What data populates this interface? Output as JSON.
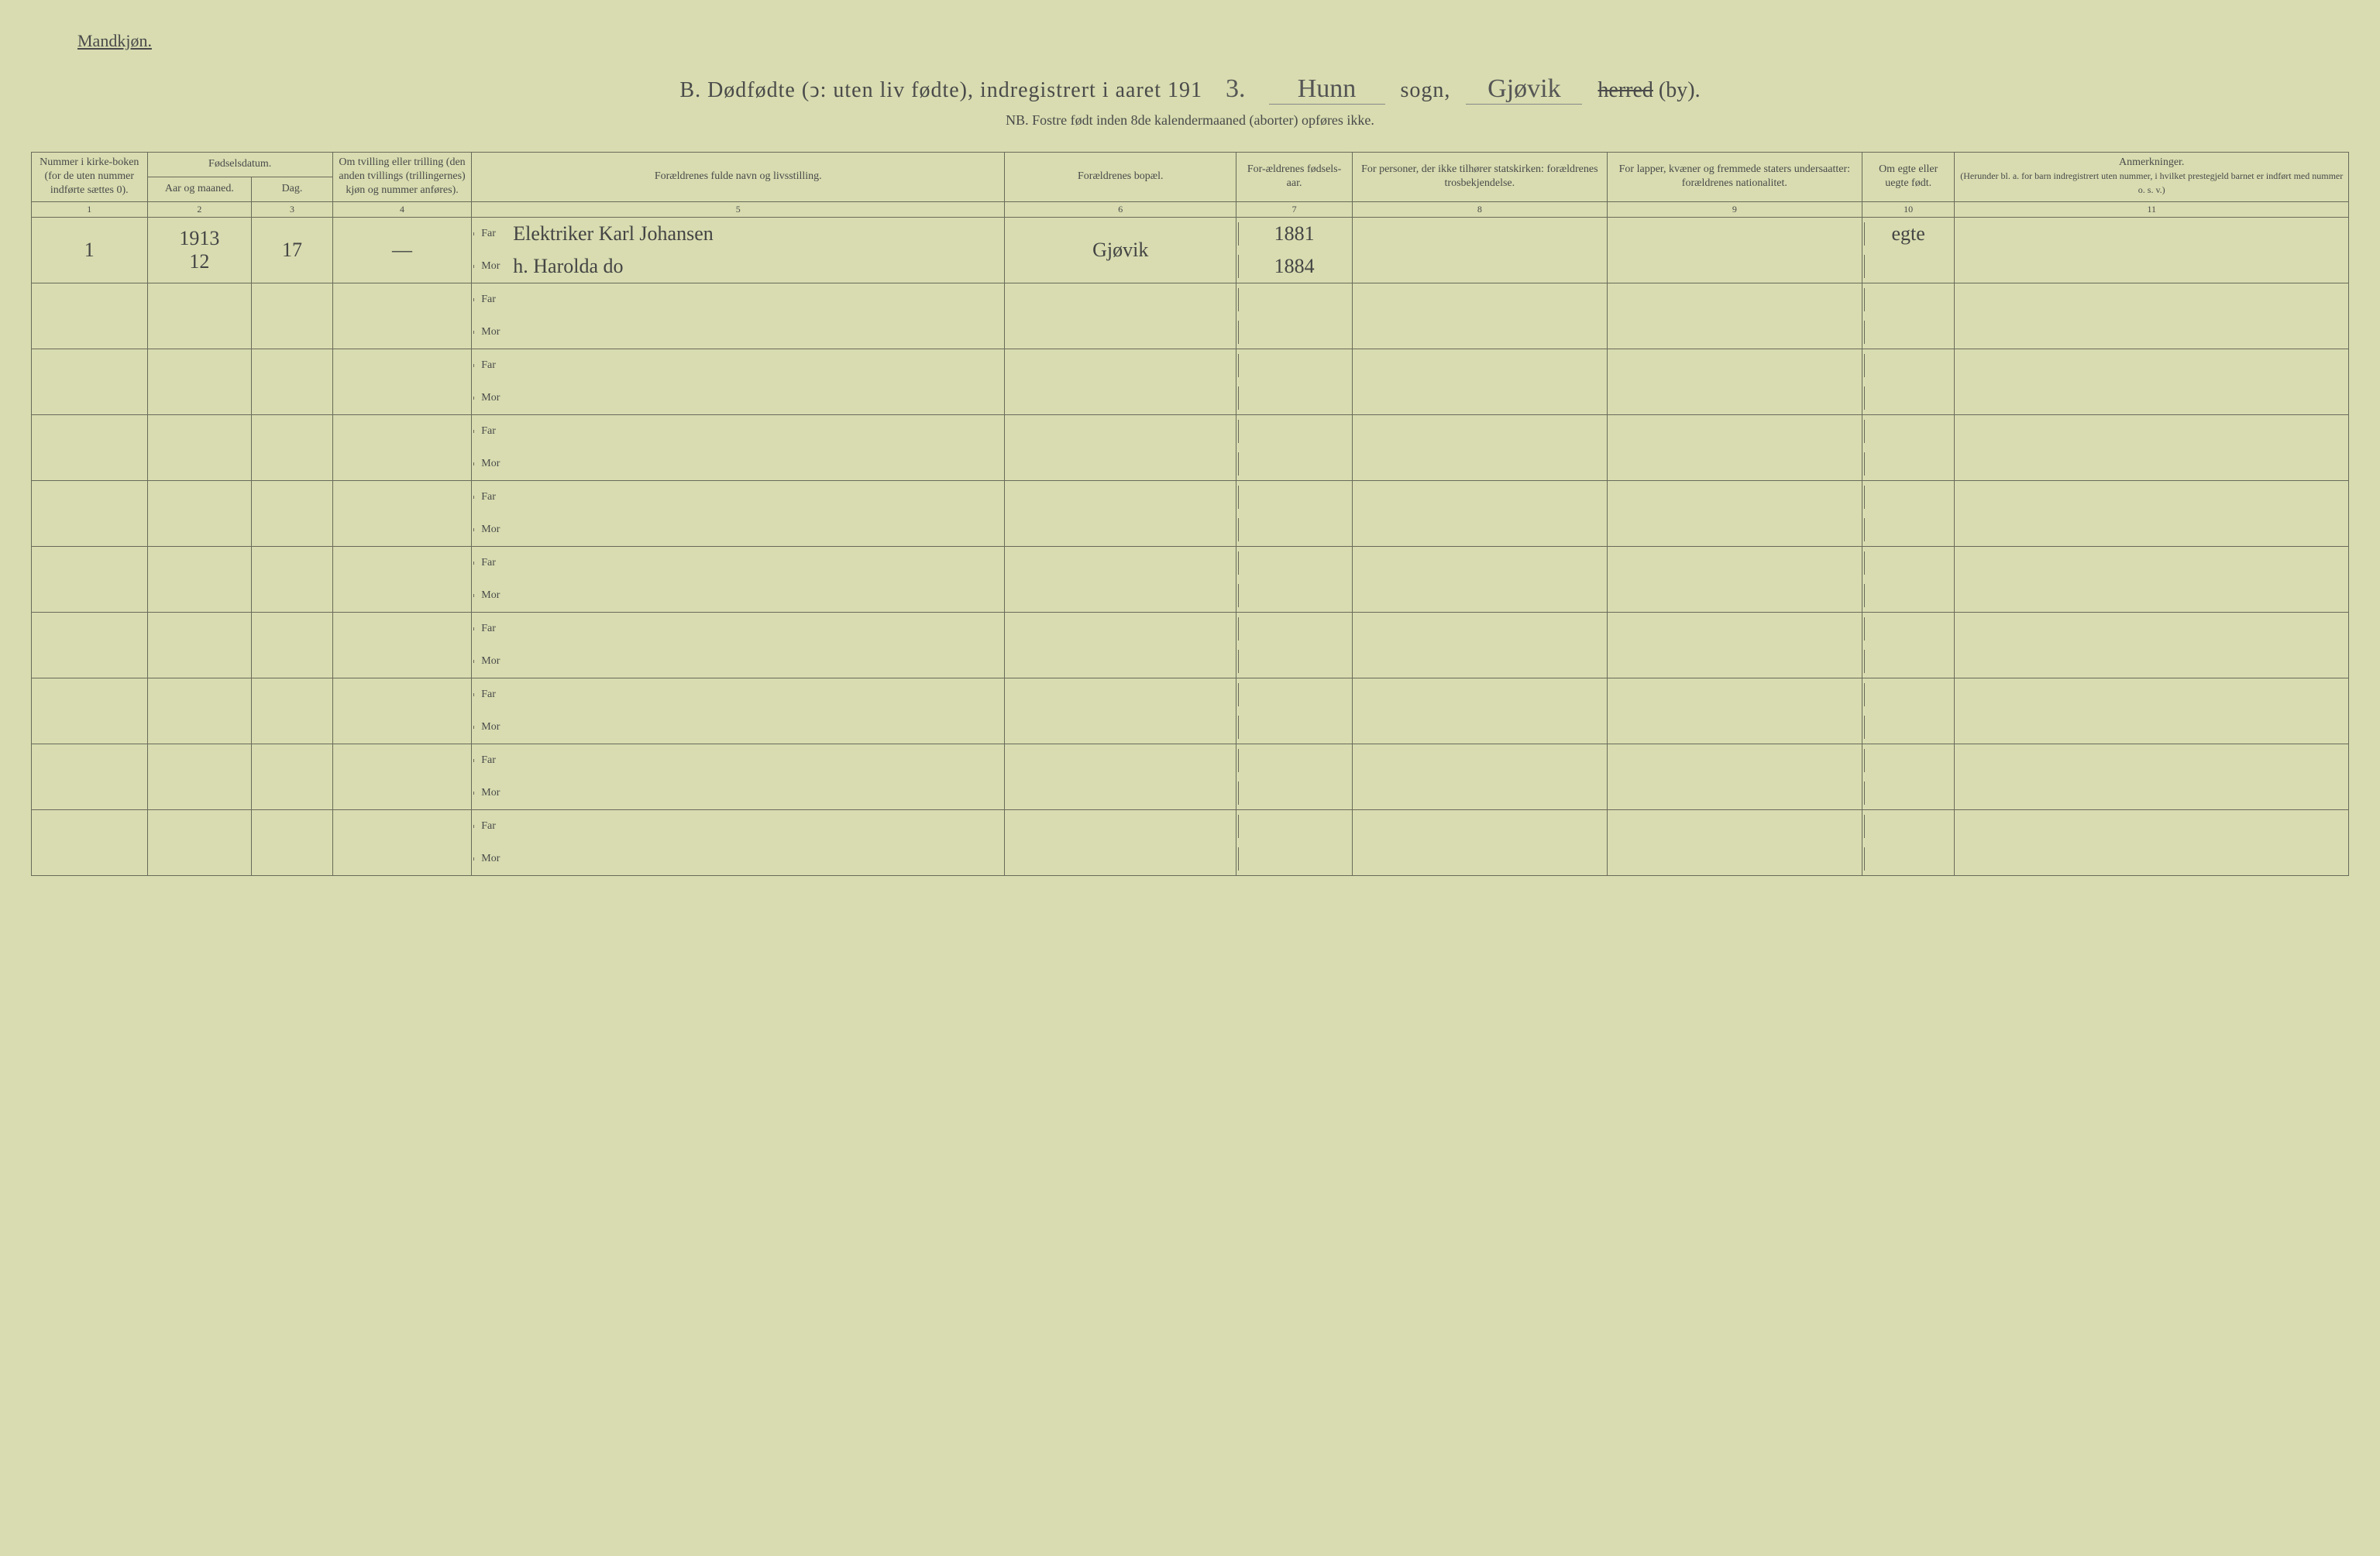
{
  "header": {
    "top_left": "Mandkjøn.",
    "title_prefix": "B.  Dødfødte (ↄ: uten liv fødte), indregistrert i aaret 191",
    "year_digit": "3.",
    "sogn_hw": "Hunn",
    "sogn_label": "sogn,",
    "herred_hw": "Gjøvik",
    "herred_strike": "herred",
    "by_label": "(by).",
    "subtitle": "NB.  Fostre født inden 8de kalendermaaned (aborter) opføres ikke."
  },
  "columns": {
    "c1": "Nummer i kirke-boken (for de uten nummer indførte sættes 0).",
    "c2_group": "Fødselsdatum.",
    "c2a": "Aar og maaned.",
    "c2b": "Dag.",
    "c4": "Om tvilling eller trilling (den anden tvillings (trillingernes) kjøn og nummer anføres).",
    "c5": "Forældrenes fulde navn og livsstilling.",
    "c6": "Forældrenes bopæl.",
    "c7": "For-ældrenes fødsels-aar.",
    "c8": "For personer, der ikke tilhører statskirken: forældrenes trosbekjendelse.",
    "c9": "For lapper, kvæner og fremmede staters undersaatter: forældrenes nationalitet.",
    "c10": "Om egte eller uegte født.",
    "c11": "Anmerkninger.",
    "c11_sub": "(Herunder bl. a. for barn indregistrert uten nummer, i hvilket prestegjeld barnet er indført med nummer o. s. v.)"
  },
  "colnums": [
    "1",
    "2",
    "3",
    "4",
    "5",
    "6",
    "7",
    "8",
    "9",
    "10",
    "11"
  ],
  "parent_labels": {
    "far": "Far",
    "mor": "Mor"
  },
  "rows": [
    {
      "num": "1",
      "year_month": "1913\n12",
      "day": "17",
      "twin": "—",
      "far_text": "Elektriker Karl Johansen",
      "mor_text": "h. Harolda   do",
      "bopael": "Gjøvik",
      "far_year": "1881",
      "mor_year": "1884",
      "c8": "",
      "c9": "",
      "egte": "egte",
      "anm": ""
    },
    {},
    {},
    {},
    {},
    {},
    {},
    {},
    {},
    {}
  ]
}
